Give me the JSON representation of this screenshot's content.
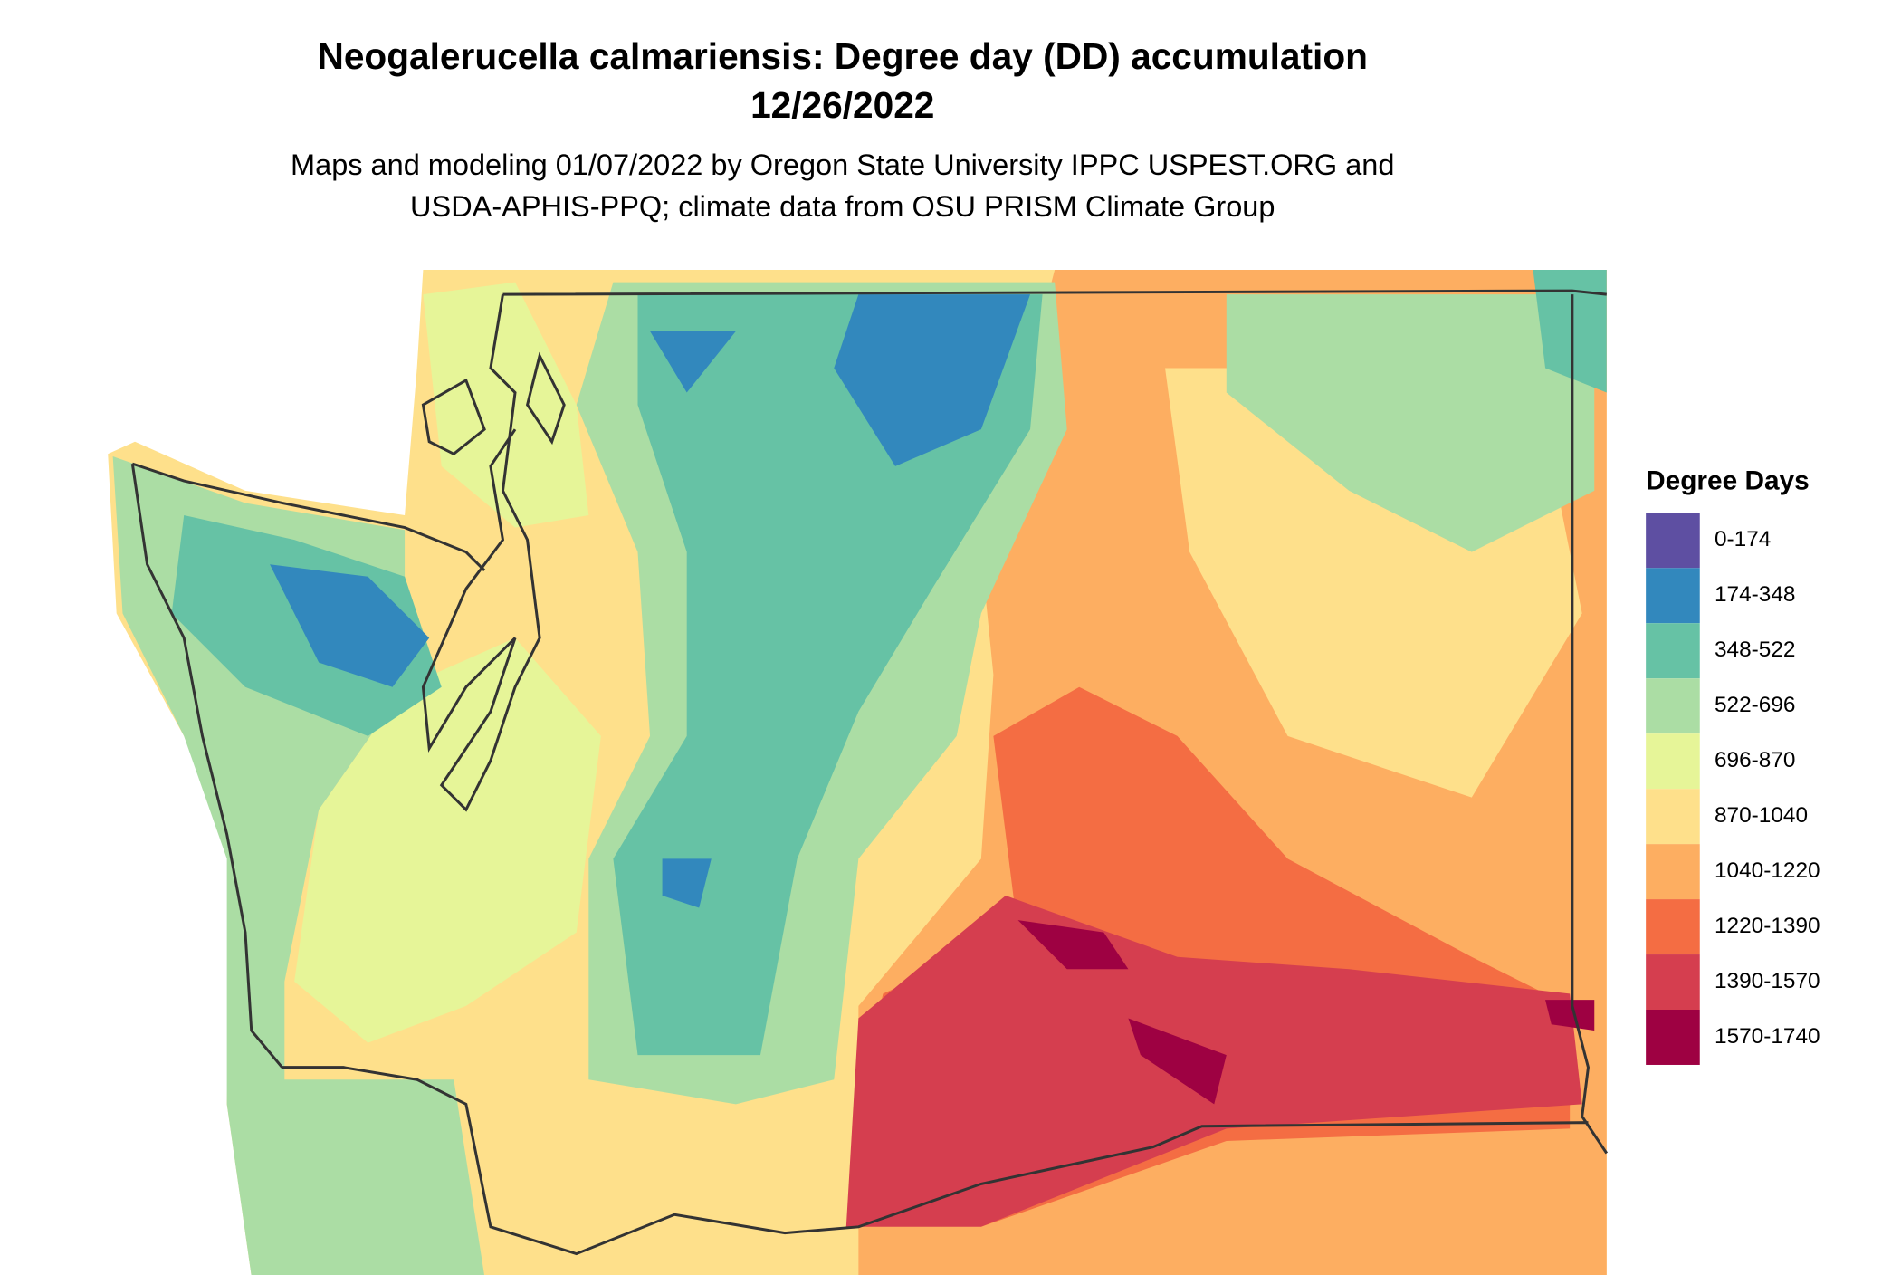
{
  "title": [
    "Neogalerucella calmariensis: Degree day (DD) accumulation",
    "12/26/2022"
  ],
  "subtitle": [
    "Maps and modeling 01/07/2022 by Oregon State University IPPC USPEST.ORG and",
    "USDA-APHIS-PPQ; climate data from OSU PRISM Climate Group"
  ],
  "legend": {
    "title": "Degree Days",
    "items": [
      {
        "label": "0-174",
        "color": "#5e4fa2"
      },
      {
        "label": "174-348",
        "color": "#3288bd"
      },
      {
        "label": "348-522",
        "color": "#66c2a5"
      },
      {
        "label": "522-696",
        "color": "#abdda4"
      },
      {
        "label": "696-870",
        "color": "#e6f598"
      },
      {
        "label": "870-1040",
        "color": "#fee08b"
      },
      {
        "label": "1040-1220",
        "color": "#fdae61"
      },
      {
        "label": "1220-1390",
        "color": "#f46d43"
      },
      {
        "label": "1390-1570",
        "color": "#d53e4f"
      },
      {
        "label": "1570-1740",
        "color": "#9e0142"
      }
    ]
  }
}
